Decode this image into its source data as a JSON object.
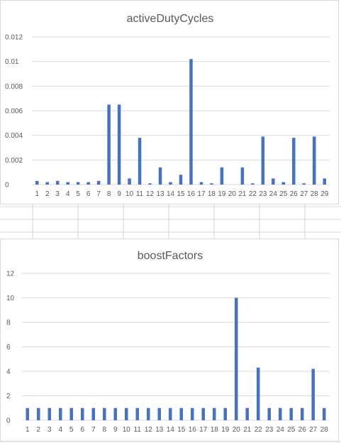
{
  "colors": {
    "bar": "#4472c4",
    "grid": "#d9d9d9",
    "text": "#595959",
    "cell_line": "#d4d4d4"
  },
  "chart_data": [
    {
      "type": "bar",
      "title": "activeDutyCycles",
      "xlabel": "",
      "ylabel": "",
      "ylim": [
        0,
        0.012
      ],
      "yticks": [
        "0",
        "0.002",
        "0.004",
        "0.006",
        "0.008",
        "0.01",
        "0.012"
      ],
      "ytick_values": [
        0,
        0.002,
        0.004,
        0.006,
        0.008,
        0.01,
        0.012
      ],
      "grid": true,
      "legend": "none",
      "categories": [
        "1",
        "2",
        "3",
        "4",
        "5",
        "6",
        "7",
        "8",
        "9",
        "10",
        "11",
        "12",
        "13",
        "14",
        "15",
        "16",
        "17",
        "18",
        "19",
        "20",
        "21",
        "22",
        "23",
        "24",
        "25",
        "26",
        "27",
        "28",
        "29"
      ],
      "values": [
        0.0003,
        0.0002,
        0.0003,
        0.0002,
        0.0002,
        0.0002,
        0.0003,
        0.0065,
        0.0065,
        0.0005,
        0.0038,
        0.0001,
        0.0014,
        0.0002,
        0.0008,
        0.0102,
        0.0002,
        0.0001,
        0.0014,
        0.0,
        0.0014,
        0.0001,
        0.0039,
        0.0005,
        0.0002,
        0.0038,
        0.0001,
        0.0039,
        0.0005
      ]
    },
    {
      "type": "bar",
      "title": "boostFactors",
      "xlabel": "",
      "ylabel": "",
      "ylim": [
        0,
        12
      ],
      "yticks": [
        "0",
        "2",
        "4",
        "6",
        "8",
        "10",
        "12"
      ],
      "ytick_values": [
        0,
        2,
        4,
        6,
        8,
        10,
        12
      ],
      "grid": true,
      "legend": "none",
      "categories": [
        "1",
        "2",
        "3",
        "4",
        "5",
        "6",
        "7",
        "8",
        "9",
        "10",
        "11",
        "12",
        "13",
        "14",
        "15",
        "16",
        "17",
        "18",
        "19",
        "20",
        "21",
        "22",
        "23",
        "24",
        "25",
        "26",
        "27",
        "28"
      ],
      "values": [
        1,
        1,
        1,
        1,
        1,
        1,
        1,
        1,
        1,
        1,
        1,
        1,
        1,
        1,
        1,
        1,
        1,
        1,
        1,
        10,
        1,
        4.3,
        1,
        1,
        1,
        1,
        4.2,
        1
      ]
    }
  ]
}
